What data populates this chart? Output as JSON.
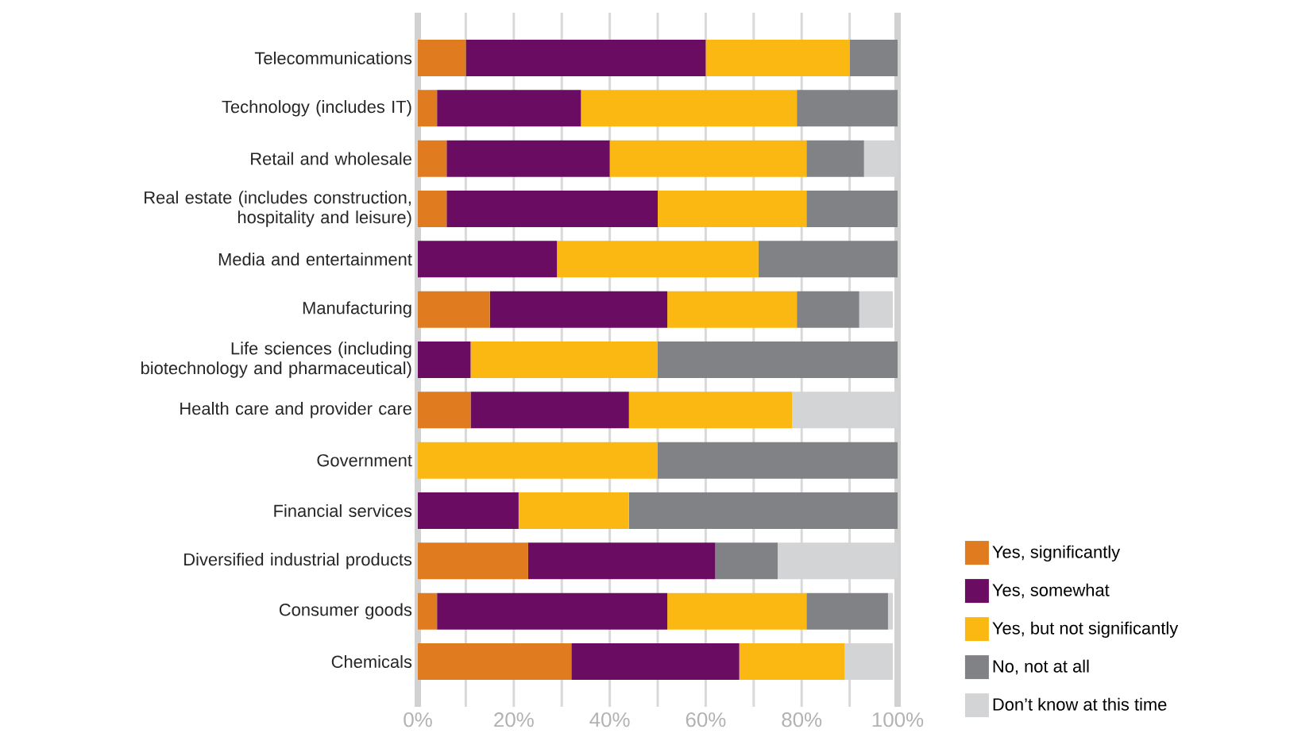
{
  "chart_data": {
    "type": "bar",
    "orientation": "horizontal",
    "stacked": true,
    "categories": [
      "Telecommunications",
      "Technology (includes IT)",
      "Retail and wholesale",
      "Real estate (includes construction, hospitality and leisure)",
      "Media and entertainment",
      "Manufacturing",
      "Life sciences (including biotechnology and pharmaceutical)",
      "Health care and provider care",
      "Government",
      "Financial services",
      "Diversified industrial products",
      "Consumer goods",
      "Chemicals"
    ],
    "series": [
      {
        "name": "Yes, significantly",
        "color": "#e07b1f",
        "values": [
          10,
          4,
          6,
          6,
          0,
          15,
          0,
          11,
          0,
          0,
          23,
          4,
          32
        ]
      },
      {
        "name": "Yes, somewhat",
        "color": "#6b0c63",
        "values": [
          50,
          30,
          34,
          44,
          29,
          37,
          11,
          33,
          0,
          21,
          39,
          48,
          35
        ]
      },
      {
        "name": "Yes, but not significantly",
        "color": "#fbb813",
        "values": [
          30,
          45,
          41,
          31,
          42,
          27,
          39,
          34,
          50,
          23,
          0,
          29,
          22
        ]
      },
      {
        "name": "No, not at all",
        "color": "#818285",
        "values": [
          10,
          21,
          12,
          19,
          29,
          13,
          50,
          0,
          50,
          56,
          13,
          17,
          0
        ]
      },
      {
        "name": "Don’t know at this time",
        "color": "#d3d4d6",
        "values": [
          0,
          0,
          7,
          0,
          0,
          7,
          0,
          22,
          0,
          0,
          25,
          1,
          10
        ]
      }
    ],
    "xlim": [
      0,
      100
    ],
    "xticks": [
      {
        "value": 0,
        "label": "0%"
      },
      {
        "value": 20,
        "label": "20%"
      },
      {
        "value": 40,
        "label": "40%"
      },
      {
        "value": 60,
        "label": "60%"
      },
      {
        "value": 80,
        "label": "80%"
      },
      {
        "value": 100,
        "label": "100%"
      }
    ],
    "grid": "x",
    "legend": "bottom right"
  }
}
